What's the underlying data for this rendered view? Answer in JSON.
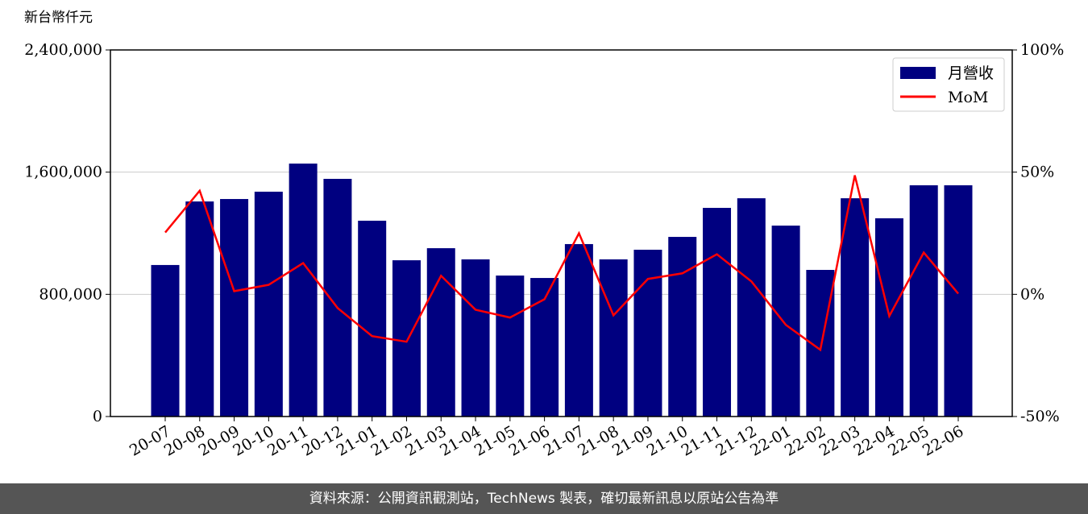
{
  "chart_data": {
    "type": "bar-line",
    "y_label": "新台幣仟元",
    "categories": [
      "20-07",
      "20-08",
      "20-09",
      "20-10",
      "20-11",
      "20-12",
      "21-01",
      "21-02",
      "21-03",
      "21-04",
      "21-05",
      "21-06",
      "21-07",
      "21-08",
      "21-09",
      "21-10",
      "21-11",
      "21-12",
      "22-01",
      "22-02",
      "22-03",
      "22-04",
      "22-05",
      "22-06"
    ],
    "series": [
      {
        "name": "月營收",
        "type": "bar",
        "color": "#000080",
        "values": [
          992000,
          1408000,
          1424000,
          1472000,
          1656000,
          1556000,
          1282000,
          1023000,
          1102000,
          1029000,
          923000,
          907000,
          1129000,
          1029000,
          1092000,
          1176000,
          1366000,
          1429000,
          1250000,
          960000,
          1429000,
          1298000,
          1514000,
          1514000
        ]
      },
      {
        "name": "MoM",
        "type": "line",
        "axis": "y2",
        "color": "#ff0000",
        "values": [
          25.3,
          42.4,
          1.3,
          3.9,
          12.8,
          -5.6,
          -17.1,
          -19.4,
          7.6,
          -6.3,
          -9.5,
          -2.0,
          25.0,
          -8.6,
          6.3,
          8.6,
          16.4,
          5.3,
          -12.5,
          -22.7,
          48.7,
          -8.9,
          17.1,
          0.3
        ]
      }
    ],
    "ylim": [
      0,
      2400000
    ],
    "yticks": [
      0,
      {
        "value": 800000,
        "label": "800,000"
      },
      {
        "value": 1600000,
        "label": "1,600,000"
      },
      {
        "value": 2400000,
        "label": "2,400,000"
      }
    ],
    "y2lim": [
      -50,
      100
    ],
    "y2ticks": [
      {
        "value": -50,
        "label": "-50%"
      },
      {
        "value": 0,
        "label": "0%"
      },
      {
        "value": 50,
        "label": "50%"
      },
      {
        "value": 100,
        "label": "100%"
      }
    ],
    "grid": true,
    "legend": "upper right"
  },
  "footer": "資料來源：公開資訊觀測站，TechNews 製表，確切最新訊息以原站公告為準"
}
